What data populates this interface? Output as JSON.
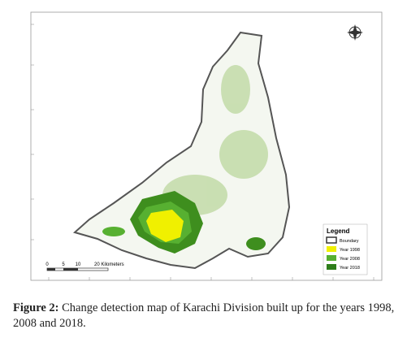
{
  "legend": {
    "title": "Legend",
    "entries": [
      "Boundary",
      "Year 1998",
      "Year 2008",
      "Year 2018"
    ]
  },
  "scale_bar": {
    "labels": [
      "0",
      "5",
      "10",
      "20 Kilometers"
    ]
  },
  "caption": {
    "label": "Figure 2:",
    "text": "Change detection map of Karachi Division built up for the years 1998, 2008 and 2018."
  }
}
